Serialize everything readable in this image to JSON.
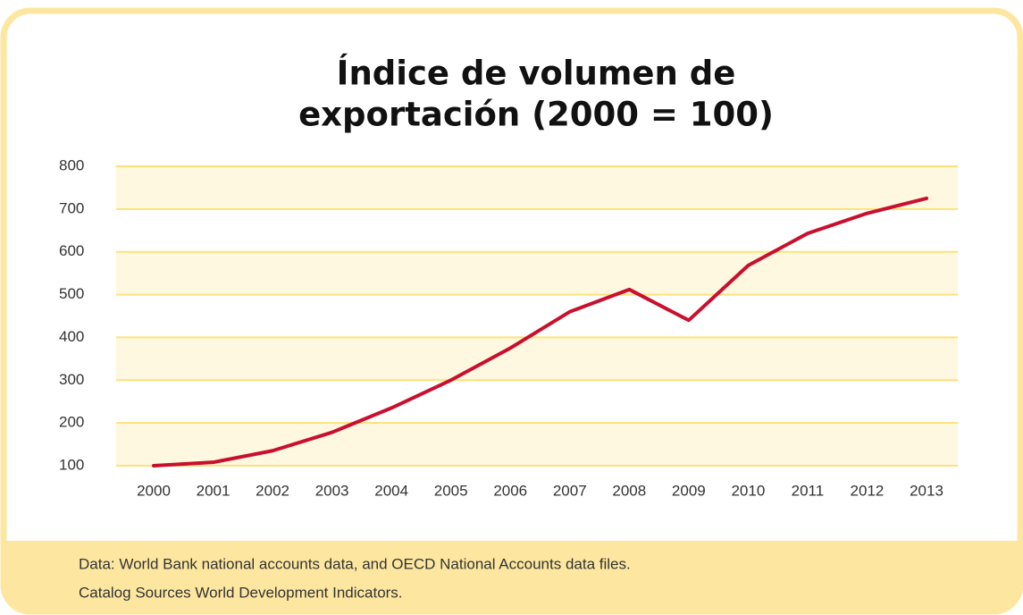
{
  "chart_data": {
    "type": "line",
    "title": [
      "Índice de volumen de",
      "exportación (2000 = 100)"
    ],
    "categories": [
      "2000",
      "2001",
      "2002",
      "2003",
      "2004",
      "2005",
      "2006",
      "2007",
      "2008",
      "2009",
      "2010",
      "2011",
      "2012",
      "2013"
    ],
    "values": [
      100,
      108,
      135,
      178,
      235,
      300,
      375,
      460,
      512,
      440,
      568,
      643,
      690,
      725
    ],
    "color": "#c8102e",
    "ylim": [
      100,
      800
    ],
    "yticks": [
      100,
      200,
      300,
      400,
      500,
      600,
      700,
      800
    ],
    "grid": true,
    "source": [
      "Data: World Bank national accounts data, and OECD National Accounts data files.",
      "Catalog Sources World Development Indicators."
    ]
  }
}
